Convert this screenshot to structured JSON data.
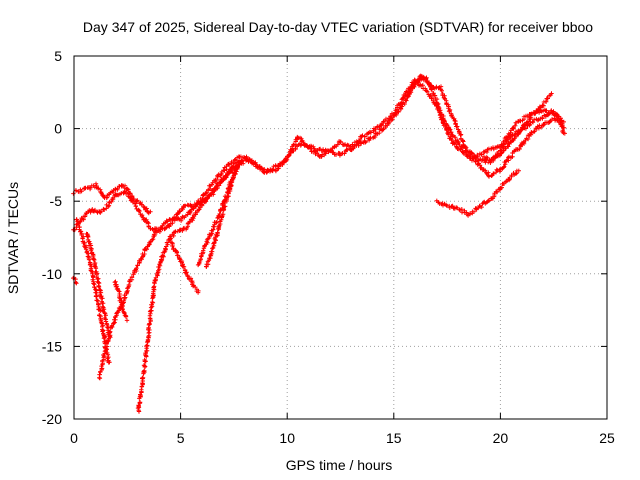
{
  "chart_data": {
    "type": "scatter",
    "title": "Day 347 of 2025, Sidereal Day-to-day VTEC variation (SDTVAR) for receiver bboo",
    "xlabel": "GPS time / hours",
    "ylabel": "SDTVAR / TECUs",
    "xlim": [
      0,
      25
    ],
    "ylim": [
      -20,
      5
    ],
    "x_ticks": [
      0,
      5,
      10,
      15,
      20,
      25
    ],
    "y_ticks": [
      -20,
      -15,
      -10,
      -5,
      0,
      5
    ],
    "x_tick_labels": [
      "0",
      "5",
      "10",
      "15",
      "20",
      "25"
    ],
    "y_tick_labels": [
      "-20",
      "-15",
      "-10",
      "-5",
      "0",
      "5"
    ],
    "grid": true,
    "marker": "+",
    "color": "#ff0000",
    "series": [
      {
        "points": [
          [
            0.0,
            -4.4
          ],
          [
            0.5,
            -4.2
          ],
          [
            1.0,
            -3.9
          ],
          [
            1.5,
            -4.8
          ],
          [
            2.0,
            -4.1
          ],
          [
            2.3,
            -3.9
          ],
          [
            2.8,
            -4.8
          ],
          [
            3.2,
            -5.3
          ],
          [
            3.6,
            -5.9
          ]
        ]
      },
      {
        "points": [
          [
            0.0,
            -7.0
          ],
          [
            0.3,
            -6.4
          ],
          [
            0.6,
            -5.8
          ],
          [
            0.9,
            -5.6
          ],
          [
            1.2,
            -5.8
          ],
          [
            1.6,
            -5.3
          ],
          [
            2.0,
            -4.5
          ],
          [
            2.4,
            -4.4
          ],
          [
            2.8,
            -5.1
          ],
          [
            3.2,
            -6.0
          ],
          [
            3.6,
            -6.9
          ],
          [
            4.0,
            -7.0
          ],
          [
            4.4,
            -6.8
          ],
          [
            4.8,
            -6.0
          ],
          [
            5.2,
            -5.3
          ],
          [
            5.6,
            -5.4
          ],
          [
            6.0,
            -5.0
          ],
          [
            6.5,
            -4.5
          ],
          [
            7.0,
            -3.5
          ],
          [
            7.5,
            -2.5
          ],
          [
            8.0,
            -2.1
          ],
          [
            8.5,
            -2.4
          ],
          [
            9.0,
            -3.0
          ],
          [
            9.5,
            -2.8
          ],
          [
            10.0,
            -2.0
          ],
          [
            10.5,
            -1.1
          ],
          [
            11.0,
            -1.2
          ],
          [
            11.5,
            -1.5
          ],
          [
            12.0,
            -1.6
          ],
          [
            12.5,
            -1.8
          ],
          [
            13.0,
            -1.4
          ],
          [
            13.5,
            -1.0
          ],
          [
            14.0,
            -0.6
          ],
          [
            14.5,
            0.0
          ],
          [
            15.0,
            0.8
          ],
          [
            15.5,
            1.8
          ],
          [
            16.0,
            3.0
          ],
          [
            16.3,
            3.7
          ],
          [
            16.6,
            3.2
          ],
          [
            17.0,
            2.0
          ],
          [
            17.3,
            0.5
          ],
          [
            17.6,
            -0.6
          ],
          [
            18.0,
            -1.4
          ],
          [
            18.5,
            -1.9
          ],
          [
            19.0,
            -2.5
          ],
          [
            19.5,
            -3.2
          ],
          [
            20.0,
            -2.8
          ],
          [
            20.5,
            -1.9
          ],
          [
            21.0,
            -1.1
          ],
          [
            21.5,
            -0.2
          ],
          [
            22.0,
            0.3
          ],
          [
            22.5,
            0.7
          ],
          [
            23.0,
            0.1
          ]
        ]
      },
      {
        "points": [
          [
            0.1,
            -6.2
          ],
          [
            0.4,
            -7.4
          ],
          [
            0.7,
            -9.0
          ],
          [
            1.0,
            -11.0
          ],
          [
            1.3,
            -13.4
          ],
          [
            1.6,
            -16.0
          ],
          [
            1.7,
            -16.2
          ]
        ]
      },
      {
        "points": [
          [
            0.6,
            -7.2
          ],
          [
            1.0,
            -9.5
          ],
          [
            1.4,
            -12.5
          ],
          [
            1.7,
            -14.5
          ]
        ]
      },
      {
        "points": [
          [
            1.2,
            -17.2
          ],
          [
            1.4,
            -15.6
          ],
          [
            1.7,
            -14.0
          ],
          [
            2.0,
            -12.8
          ],
          [
            2.3,
            -12.0
          ],
          [
            2.6,
            -10.6
          ],
          [
            3.0,
            -9.4
          ],
          [
            3.4,
            -8.2
          ],
          [
            3.8,
            -7.2
          ],
          [
            4.2,
            -6.6
          ],
          [
            4.6,
            -6.2
          ],
          [
            5.0,
            -6.3
          ],
          [
            5.4,
            -5.8
          ],
          [
            5.8,
            -5.1
          ],
          [
            6.2,
            -4.4
          ],
          [
            6.6,
            -3.6
          ],
          [
            7.0,
            -2.9
          ],
          [
            7.4,
            -2.3
          ],
          [
            7.8,
            -2.0
          ],
          [
            8.2,
            -2.0
          ],
          [
            8.6,
            -2.6
          ],
          [
            9.0,
            -3.0
          ],
          [
            9.5,
            -2.6
          ],
          [
            10.0,
            -2.0
          ],
          [
            10.5,
            -0.6
          ],
          [
            11.0,
            -1.3
          ],
          [
            11.5,
            -1.9
          ],
          [
            12.0,
            -1.5
          ],
          [
            12.5,
            -0.9
          ],
          [
            13.0,
            -1.3
          ],
          [
            13.5,
            -0.6
          ],
          [
            14.0,
            -0.2
          ],
          [
            14.5,
            0.4
          ],
          [
            15.0,
            1.0
          ],
          [
            15.5,
            2.3
          ],
          [
            16.0,
            3.3
          ],
          [
            16.5,
            2.7
          ],
          [
            17.0,
            1.6
          ],
          [
            17.5,
            0.2
          ],
          [
            18.0,
            -1.0
          ],
          [
            18.5,
            -1.6
          ],
          [
            19.0,
            -2.1
          ],
          [
            19.5,
            -2.3
          ],
          [
            20.0,
            -1.8
          ],
          [
            20.5,
            -0.9
          ],
          [
            21.0,
            0.0
          ],
          [
            21.5,
            0.9
          ],
          [
            22.0,
            1.3
          ],
          [
            22.5,
            1.1
          ],
          [
            23.0,
            0.3
          ]
        ]
      },
      {
        "points": [
          [
            1.9,
            -10.5
          ],
          [
            2.1,
            -11.3
          ],
          [
            2.3,
            -12.6
          ],
          [
            2.5,
            -13.2
          ]
        ]
      },
      {
        "points": [
          [
            3.0,
            -19.5
          ],
          [
            3.2,
            -17.6
          ],
          [
            3.4,
            -15.2
          ],
          [
            3.6,
            -12.8
          ],
          [
            3.8,
            -10.6
          ],
          [
            4.1,
            -9.0
          ],
          [
            4.4,
            -7.8
          ],
          [
            4.8,
            -7.0
          ],
          [
            5.2,
            -6.9
          ],
          [
            5.6,
            -6.1
          ],
          [
            6.0,
            -5.2
          ],
          [
            6.5,
            -4.3
          ],
          [
            7.0,
            -3.4
          ],
          [
            7.5,
            -2.7
          ],
          [
            8.0,
            -2.3
          ]
        ]
      },
      {
        "points": [
          [
            4.5,
            -7.4
          ],
          [
            4.7,
            -8.3
          ],
          [
            5.0,
            -9.1
          ],
          [
            5.3,
            -10.0
          ],
          [
            5.6,
            -10.8
          ],
          [
            5.9,
            -11.3
          ]
        ]
      },
      {
        "points": [
          [
            5.8,
            -9.4
          ],
          [
            6.1,
            -8.3
          ],
          [
            6.4,
            -7.3
          ],
          [
            6.8,
            -5.9
          ],
          [
            7.2,
            -4.4
          ],
          [
            7.5,
            -3.0
          ],
          [
            7.8,
            -2.2
          ]
        ]
      },
      {
        "points": [
          [
            6.2,
            -9.6
          ],
          [
            6.5,
            -8.3
          ],
          [
            6.8,
            -6.8
          ],
          [
            7.1,
            -5.1
          ],
          [
            7.4,
            -3.7
          ],
          [
            7.7,
            -2.6
          ]
        ]
      },
      {
        "points": [
          [
            0.0,
            -10.3
          ],
          [
            0.1,
            -10.7
          ]
        ]
      },
      {
        "points": [
          [
            17.0,
            -5.0
          ],
          [
            17.5,
            -5.3
          ],
          [
            18.0,
            -5.5
          ],
          [
            18.5,
            -5.9
          ],
          [
            19.0,
            -5.4
          ],
          [
            19.5,
            -4.9
          ],
          [
            20.0,
            -4.1
          ],
          [
            20.5,
            -3.3
          ],
          [
            20.9,
            -2.8
          ]
        ]
      },
      {
        "points": [
          [
            15.6,
            2.2
          ],
          [
            16.0,
            3.3
          ],
          [
            16.5,
            3.4
          ],
          [
            16.8,
            2.8
          ],
          [
            17.2,
            2.8
          ],
          [
            17.6,
            1.3
          ],
          [
            18.0,
            0.0
          ],
          [
            18.4,
            -1.5
          ],
          [
            18.8,
            -2.0
          ],
          [
            19.2,
            -1.7
          ],
          [
            19.6,
            -1.4
          ],
          [
            20.0,
            -1.2
          ],
          [
            20.4,
            -0.4
          ],
          [
            20.8,
            0.5
          ],
          [
            21.2,
            0.8
          ],
          [
            21.6,
            1.1
          ],
          [
            22.0,
            1.6
          ],
          [
            22.4,
            2.4
          ]
        ]
      },
      {
        "points": [
          [
            19.2,
            -2.0
          ],
          [
            19.6,
            -2.2
          ],
          [
            20.0,
            -1.5
          ],
          [
            20.4,
            -0.6
          ],
          [
            20.8,
            -0.2
          ],
          [
            21.2,
            0.1
          ],
          [
            21.6,
            0.5
          ],
          [
            22.0,
            0.8
          ],
          [
            22.4,
            1.2
          ],
          [
            22.8,
            0.7
          ],
          [
            23.0,
            -0.4
          ]
        ]
      }
    ]
  }
}
